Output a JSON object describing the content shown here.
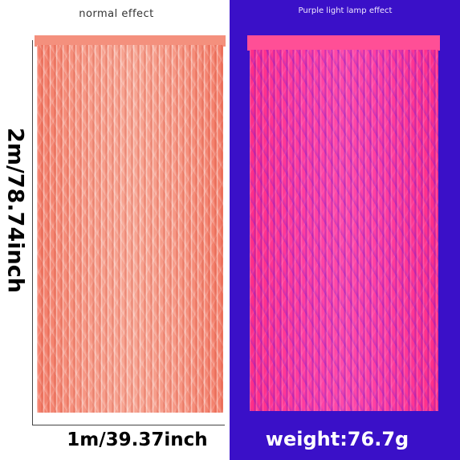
{
  "left_panel": {
    "caption": "normal effect",
    "height_label": "2m/78.74inch",
    "width_label": "1m/39.37inch"
  },
  "right_panel": {
    "caption": "Purple light lamp effect",
    "weight_label": "weight:76.7g"
  },
  "colors": {
    "curtain_normal": "#f69683",
    "curtain_uv": "#ff3ea0",
    "uv_background": "#3a10c8"
  }
}
